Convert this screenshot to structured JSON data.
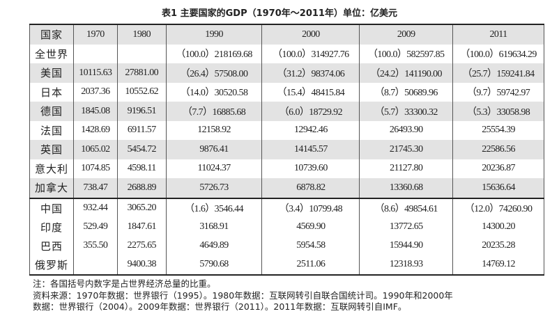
{
  "title": "表1  主要国家的GDP（1970年～2011年）单位：亿美元",
  "headers": [
    "国家",
    "1970",
    "1980",
    "1990",
    "2000",
    "2009",
    "2011"
  ],
  "rows": [
    [
      "全世界",
      "",
      "",
      "（100.0）218169.68",
      "（100.0）314927.76",
      "（100.0）582597.85",
      "（100.0）619634.29"
    ],
    [
      "美国",
      "10115.63",
      "27881.00",
      "（26.4）57508.00",
      "（31.2）98374.06",
      "（24.2）141190.00",
      "（25.7）159241.84"
    ],
    [
      "日本",
      "2037.36",
      "10552.62",
      "（14.0）30520.58",
      "（15.4）48415.84",
      "（8.7）50689.96",
      "（9.7）59742.97"
    ],
    [
      "德国",
      "1845.08",
      "9196.51",
      "（7.7）16885.68",
      "（6.0）18729.92",
      "（5.7）33300.32",
      "（5.3）33058.98"
    ],
    [
      "法国",
      "1428.69",
      "6911.57",
      "12158.92",
      "12942.46",
      "26493.90",
      "25554.39"
    ],
    [
      "英国",
      "1065.02",
      "5454.72",
      "9876.41",
      "14145.57",
      "21745.30",
      "22586.56"
    ],
    [
      "意大利",
      "1074.85",
      "4598.11",
      "11024.37",
      "10739.60",
      "21127.80",
      "20236.87"
    ],
    [
      "加拿大",
      "738.47",
      "2688.89",
      "5726.73",
      "6878.82",
      "13360.68",
      "15636.64"
    ],
    [
      "中国",
      "932.44",
      "3065.20",
      "（1.6）3546.44",
      "（3.4）10799.48",
      "（8.6）49854.61",
      "（12.0）74260.90"
    ],
    [
      "印度",
      "529.49",
      "1847.61",
      "3168.91",
      "4569.90",
      "13772.65",
      "14300.20"
    ],
    [
      "巴西",
      "355.50",
      "2275.65",
      "4649.89",
      "5954.58",
      "15944.90",
      "20235.28"
    ],
    [
      "俄罗斯",
      "",
      "9400.38",
      "5790.68",
      "2511.06",
      "12318.93",
      "14769.12"
    ]
  ],
  "notes": [
    "注：各国括号内数字是占世界经济总量的比重。",
    "资料来源：1970年数据：世界银行（1995）。1980年数据：互联网转引自联合国统计司。1990年和2000年",
    "数据：世界银行（2004）。2009年数据：世界银行（2011）。2011年数据：互联网转引自IMF。"
  ]
}
